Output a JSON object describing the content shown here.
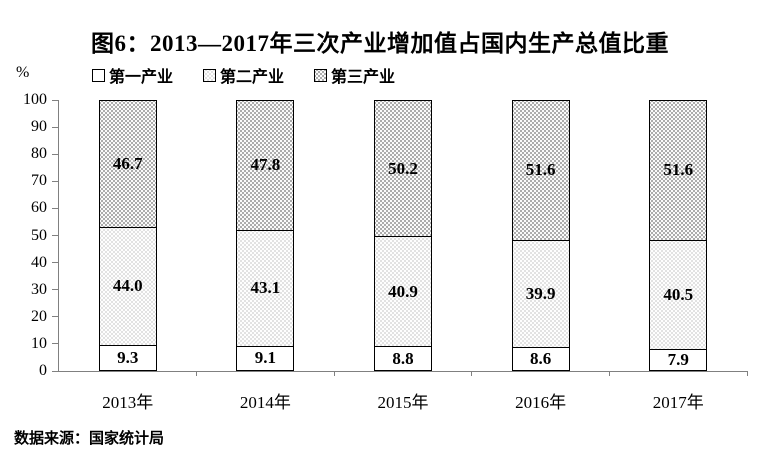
{
  "chart_data": {
    "type": "bar",
    "stacked": true,
    "title": "图6：2013—2017年三次产业增加值占国内生产总值比重",
    "ylabel": "%",
    "xlabel": "",
    "ylim": [
      0,
      100
    ],
    "yticks": [
      0,
      10,
      20,
      30,
      40,
      50,
      60,
      70,
      80,
      90,
      100
    ],
    "grid": false,
    "legend_position": "top-left",
    "categories": [
      "2013年",
      "2014年",
      "2015年",
      "2016年",
      "2017年"
    ],
    "series": [
      {
        "name": "第一产业",
        "key": "primary",
        "values": [
          9.3,
          9.1,
          8.8,
          8.6,
          7.9
        ],
        "value_labels": [
          "9.3",
          "9.1",
          "8.8",
          "8.6",
          "7.9"
        ],
        "fill": "#ffffff",
        "pattern": "none"
      },
      {
        "name": "第二产业",
        "key": "secondary",
        "values": [
          44.0,
          43.1,
          40.9,
          39.9,
          40.5
        ],
        "value_labels": [
          "44.0",
          "43.1",
          "40.9",
          "39.9",
          "40.5"
        ],
        "fill": "#e1e1e1",
        "pattern": "white-dots"
      },
      {
        "name": "第三产业",
        "key": "tertiary",
        "values": [
          46.7,
          47.8,
          50.2,
          51.6,
          51.6
        ],
        "value_labels": [
          "46.7",
          "47.8",
          "50.2",
          "51.6",
          "51.6"
        ],
        "fill": "#a8a8a8",
        "pattern": "white-dots"
      }
    ]
  },
  "source_note": "数据来源：国家统计局",
  "colors": {
    "axis": "#808080",
    "bar_border": "#000000",
    "text": "#000000",
    "background": "#ffffff"
  }
}
